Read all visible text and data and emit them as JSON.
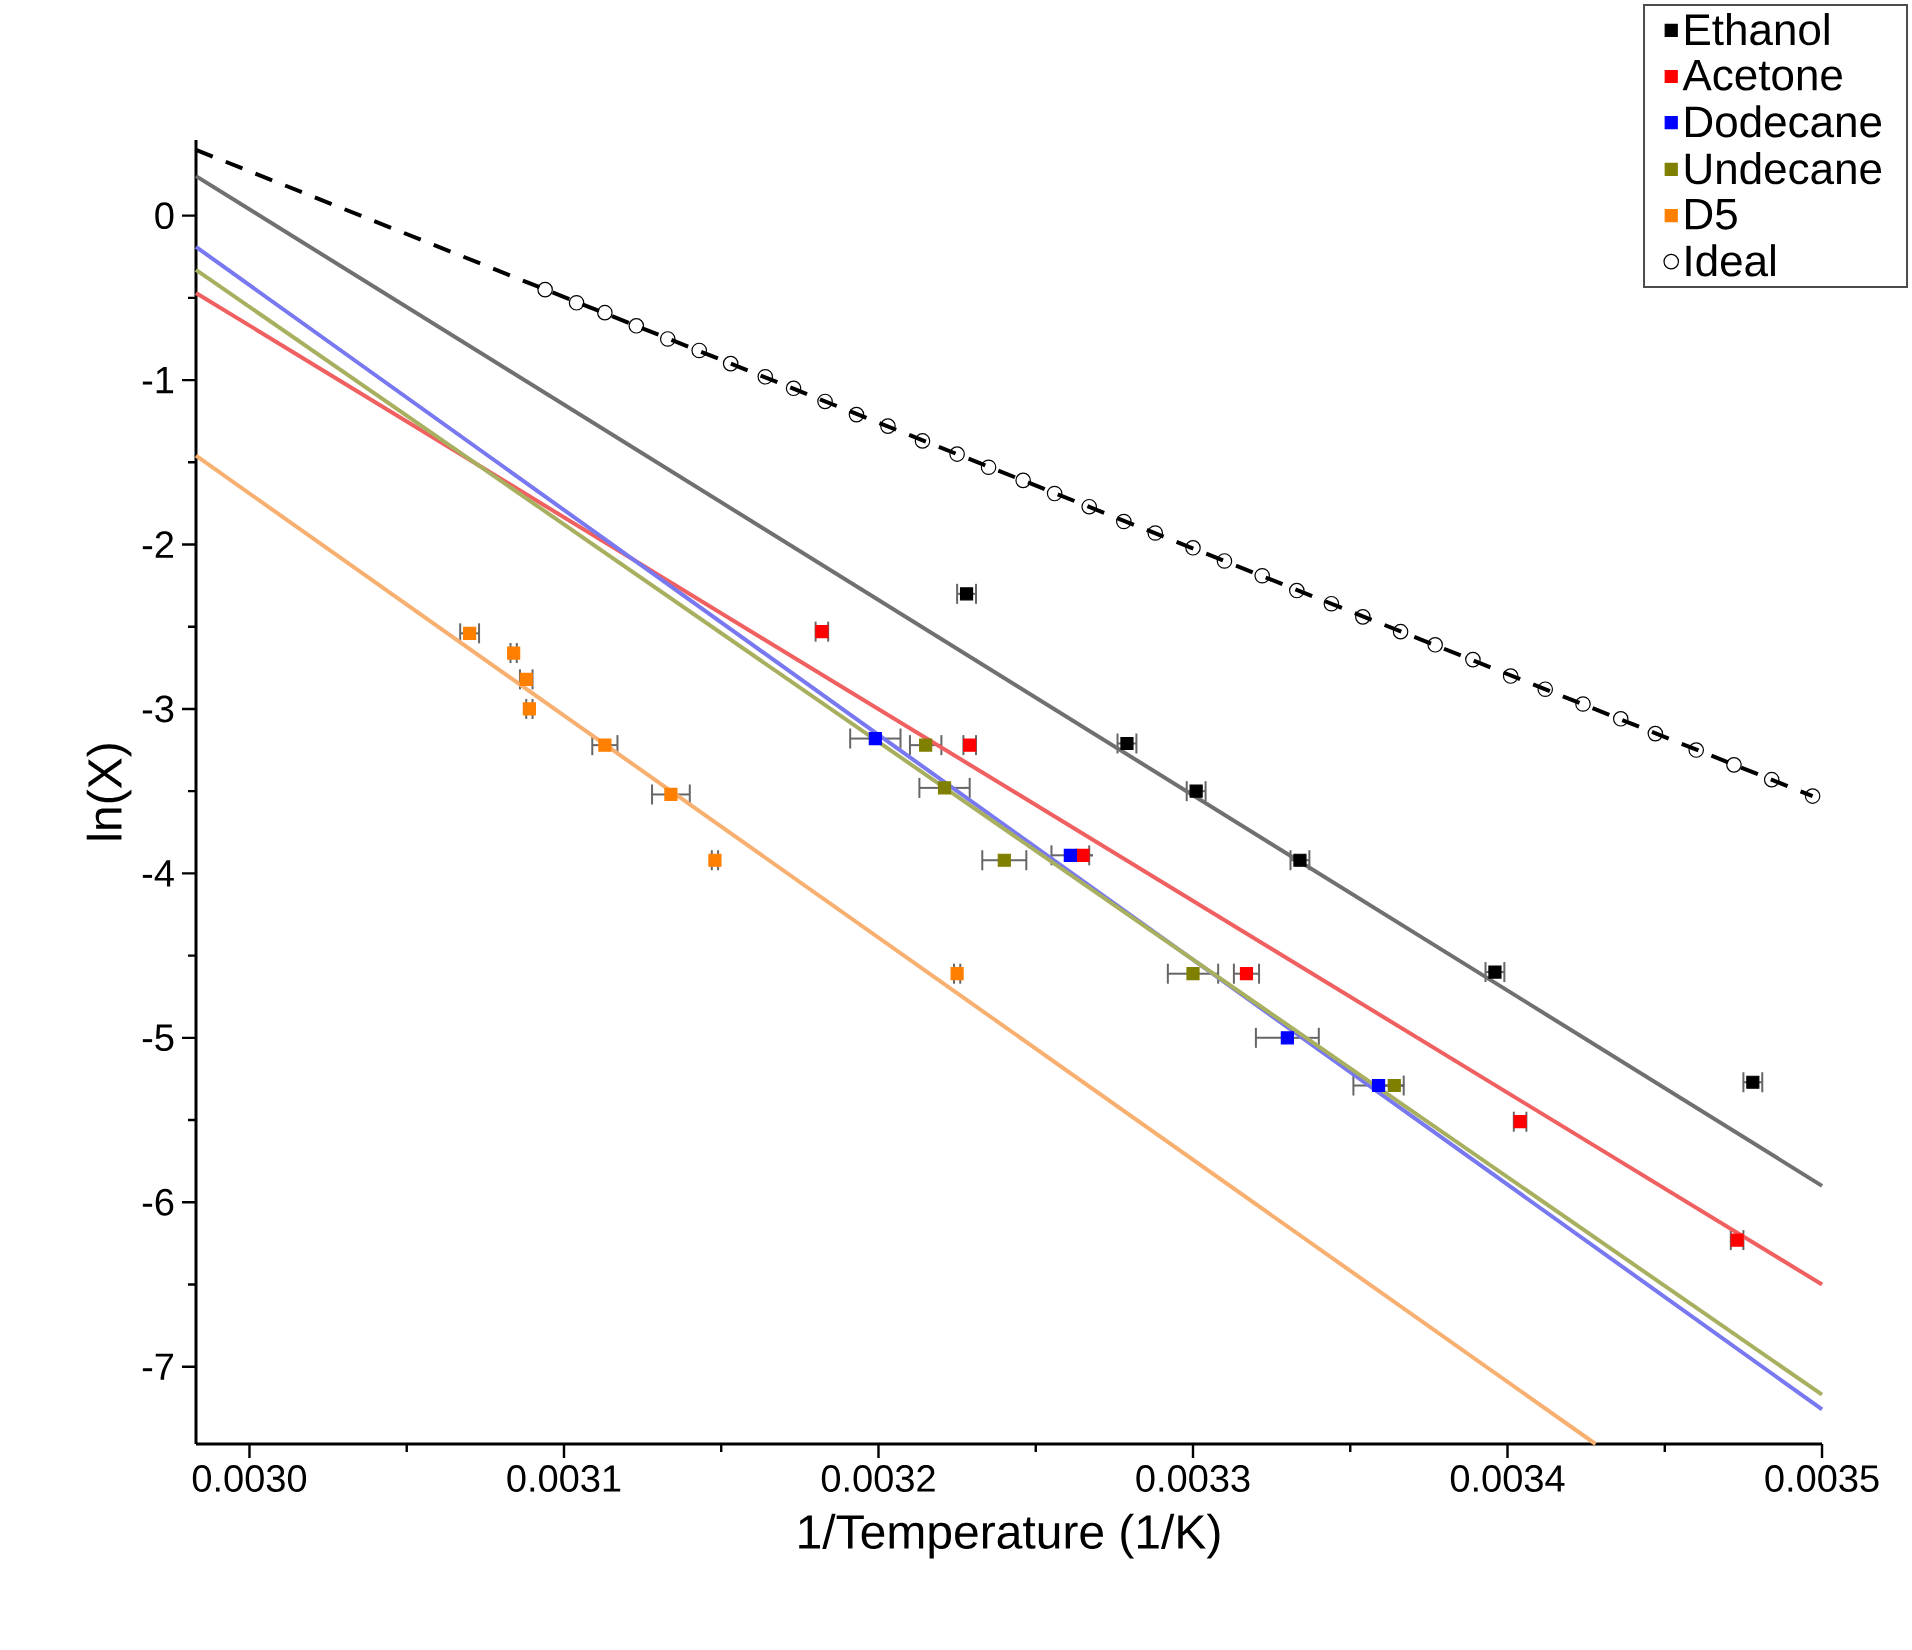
{
  "chart_data": {
    "type": "scatter",
    "xlabel": "1/Temperature (1/K)",
    "ylabel": "ln(X)",
    "xlim": [
      0.002983,
      0.0035
    ],
    "ylim": [
      -7.47,
      0.46
    ],
    "xticks": [
      {
        "value": 0.003,
        "label": "0.0030"
      },
      {
        "value": 0.0031,
        "label": "0.0031"
      },
      {
        "value": 0.0032,
        "label": "0.0032"
      },
      {
        "value": 0.0033,
        "label": "0.0033"
      },
      {
        "value": 0.0034,
        "label": "0.0034"
      },
      {
        "value": 0.0035,
        "label": "0.0035"
      }
    ],
    "yticks": [
      0,
      -1,
      -2,
      -3,
      -4,
      -5,
      -6,
      -7
    ],
    "legend": "top right",
    "marker": "square",
    "grid": false,
    "series": [
      {
        "name": "Ethanol",
        "color": "#000000",
        "x": [
          0.003228,
          0.003279,
          0.003301,
          0.003334,
          0.003396,
          0.003478
        ],
        "values": [
          -2.3,
          -3.21,
          -3.5,
          -3.92,
          -4.6,
          -5.27
        ],
        "xerrors": [
          3e-06,
          3e-06,
          3e-06,
          3e-06,
          3e-06,
          3e-06
        ]
      },
      {
        "name": "Acetone",
        "color": "#ff0000",
        "x": [
          0.003182,
          0.003229,
          0.003265,
          0.003317,
          0.003404,
          0.003473
        ],
        "values": [
          -2.53,
          -3.22,
          -3.89,
          -4.61,
          -5.51,
          -6.23
        ],
        "xerrors": [
          2e-06,
          2e-06,
          null,
          4e-06,
          2e-06,
          2e-06
        ]
      },
      {
        "name": "Dodecane",
        "color": "#0000ff",
        "x": [
          0.003199,
          0.003261,
          0.00333,
          0.003359
        ],
        "values": [
          -3.18,
          -3.89,
          -5.0,
          -5.29
        ],
        "xerrors": [
          8e-06,
          6e-06,
          1e-05,
          8e-06
        ]
      },
      {
        "name": "Undecane",
        "color": "#808000",
        "x": [
          0.003215,
          0.003221,
          0.00324,
          0.0033,
          0.003364
        ],
        "values": [
          -3.22,
          -3.48,
          -3.92,
          -4.61,
          -5.29
        ],
        "xerrors": [
          5e-06,
          8e-06,
          7e-06,
          8e-06,
          null
        ]
      },
      {
        "name": "D5",
        "color": "#ff8000",
        "x": [
          0.00307,
          0.003084,
          0.003088,
          0.003089,
          0.003113,
          0.003134,
          0.003148,
          0.003225
        ],
        "values": [
          -2.54,
          -2.66,
          -2.82,
          -3.0,
          -3.22,
          -3.52,
          -3.92,
          -4.61
        ],
        "xerrors": [
          3e-06,
          1e-06,
          2e-06,
          1e-06,
          4e-06,
          6e-06,
          1e-06,
          1e-06
        ]
      },
      {
        "name": "Ideal",
        "color": "#000000",
        "marker": "circle",
        "x": [
          0.003094,
          0.003104,
          0.003113,
          0.003123,
          0.003133,
          0.003143,
          0.003153,
          0.003164,
          0.003173,
          0.003183,
          0.003193,
          0.003203,
          0.003214,
          0.003225,
          0.003235,
          0.003246,
          0.003256,
          0.003267,
          0.003278,
          0.003288,
          0.0033,
          0.00331,
          0.003322,
          0.003333,
          0.003344,
          0.003354,
          0.003366,
          0.003377,
          0.003389,
          0.003401,
          0.003412,
          0.003424,
          0.003436,
          0.003447,
          0.00346,
          0.003472,
          0.003484,
          0.003497
        ],
        "values": [
          -0.45,
          -0.53,
          -0.59,
          -0.67,
          -0.75,
          -0.82,
          -0.9,
          -0.98,
          -1.05,
          -1.13,
          -1.21,
          -1.28,
          -1.37,
          -1.45,
          -1.53,
          -1.61,
          -1.69,
          -1.77,
          -1.86,
          -1.93,
          -2.02,
          -2.1,
          -2.19,
          -2.28,
          -2.36,
          -2.44,
          -2.53,
          -2.61,
          -2.7,
          -2.8,
          -2.88,
          -2.97,
          -3.06,
          -3.15,
          -3.25,
          -3.34,
          -3.43,
          -3.53
        ]
      },
      {
        "type": "line",
        "color": "#707070",
        "line_style": "solid",
        "marker": "none",
        "x": [
          0.002983,
          0.0035
        ],
        "values": [
          0.24,
          -5.9
        ]
      },
      {
        "type": "line",
        "color": "#f06060",
        "line_style": "solid",
        "marker": "none",
        "x": [
          0.002983,
          0.0035
        ],
        "values": [
          -0.47,
          -6.5
        ]
      },
      {
        "type": "line",
        "color": "#7878f0",
        "line_style": "solid",
        "marker": "none",
        "x": [
          0.002983,
          0.0035
        ],
        "values": [
          -0.19,
          -7.26
        ]
      },
      {
        "type": "line",
        "color": "#a8b060",
        "line_style": "solid",
        "marker": "none",
        "x": [
          0.002983,
          0.0035
        ],
        "values": [
          -0.33,
          -7.17
        ]
      },
      {
        "type": "line",
        "color": "#f8b070",
        "line_style": "solid",
        "marker": "none",
        "x": [
          0.002983,
          0.003428
        ],
        "values": [
          -1.46,
          -7.47
        ]
      },
      {
        "type": "line",
        "color": "#000000",
        "line_style": "dashed",
        "marker": "none",
        "x": [
          0.002983,
          0.003497
        ],
        "values": [
          0.4,
          -3.53
        ]
      }
    ]
  }
}
